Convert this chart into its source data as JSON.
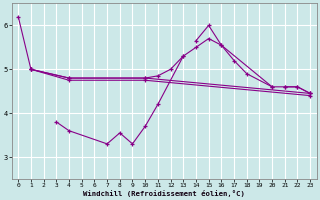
{
  "bg_color": "#cce8e8",
  "grid_color": "#ffffff",
  "line_color": "#880088",
  "xlabel": "Windchill (Refroidissement éolien,°C)",
  "ylim": [
    2.5,
    6.5
  ],
  "yticks": [
    3,
    4,
    5,
    6
  ],
  "xticks": [
    0,
    1,
    2,
    3,
    4,
    5,
    6,
    7,
    8,
    9,
    10,
    11,
    12,
    13,
    14,
    15,
    16,
    17,
    18,
    19,
    20,
    21,
    22,
    23
  ],
  "series_jagged": [
    [
      0,
      6.2
    ],
    [
      1,
      5.0
    ],
    [
      3,
      3.8
    ],
    [
      4,
      3.6
    ],
    [
      7,
      3.3
    ],
    [
      8,
      3.55
    ],
    [
      9,
      3.3
    ],
    [
      10,
      3.7
    ],
    [
      11,
      4.2
    ],
    [
      13,
      5.3
    ],
    [
      14,
      5.65
    ],
    [
      15,
      6.0
    ],
    [
      16,
      5.55
    ],
    [
      17,
      5.2
    ],
    [
      18,
      4.9
    ],
    [
      20,
      4.6
    ],
    [
      21,
      4.6
    ],
    [
      22,
      4.6
    ],
    [
      23,
      4.45
    ]
  ],
  "series_upper": [
    [
      1,
      5.0
    ],
    [
      4,
      4.8
    ],
    [
      10,
      4.8
    ],
    [
      11,
      4.85
    ],
    [
      12,
      5.0
    ],
    [
      13,
      5.3
    ],
    [
      14,
      5.5
    ],
    [
      15,
      5.7
    ],
    [
      16,
      5.55
    ],
    [
      20,
      4.6
    ],
    [
      21,
      4.6
    ],
    [
      22,
      4.6
    ],
    [
      23,
      4.45
    ]
  ],
  "series_mid1": [
    [
      1,
      5.0
    ],
    [
      4,
      4.8
    ],
    [
      10,
      4.8
    ],
    [
      23,
      4.45
    ]
  ],
  "series_mid2": [
    [
      1,
      5.0
    ],
    [
      4,
      4.75
    ],
    [
      10,
      4.75
    ],
    [
      23,
      4.4
    ]
  ]
}
